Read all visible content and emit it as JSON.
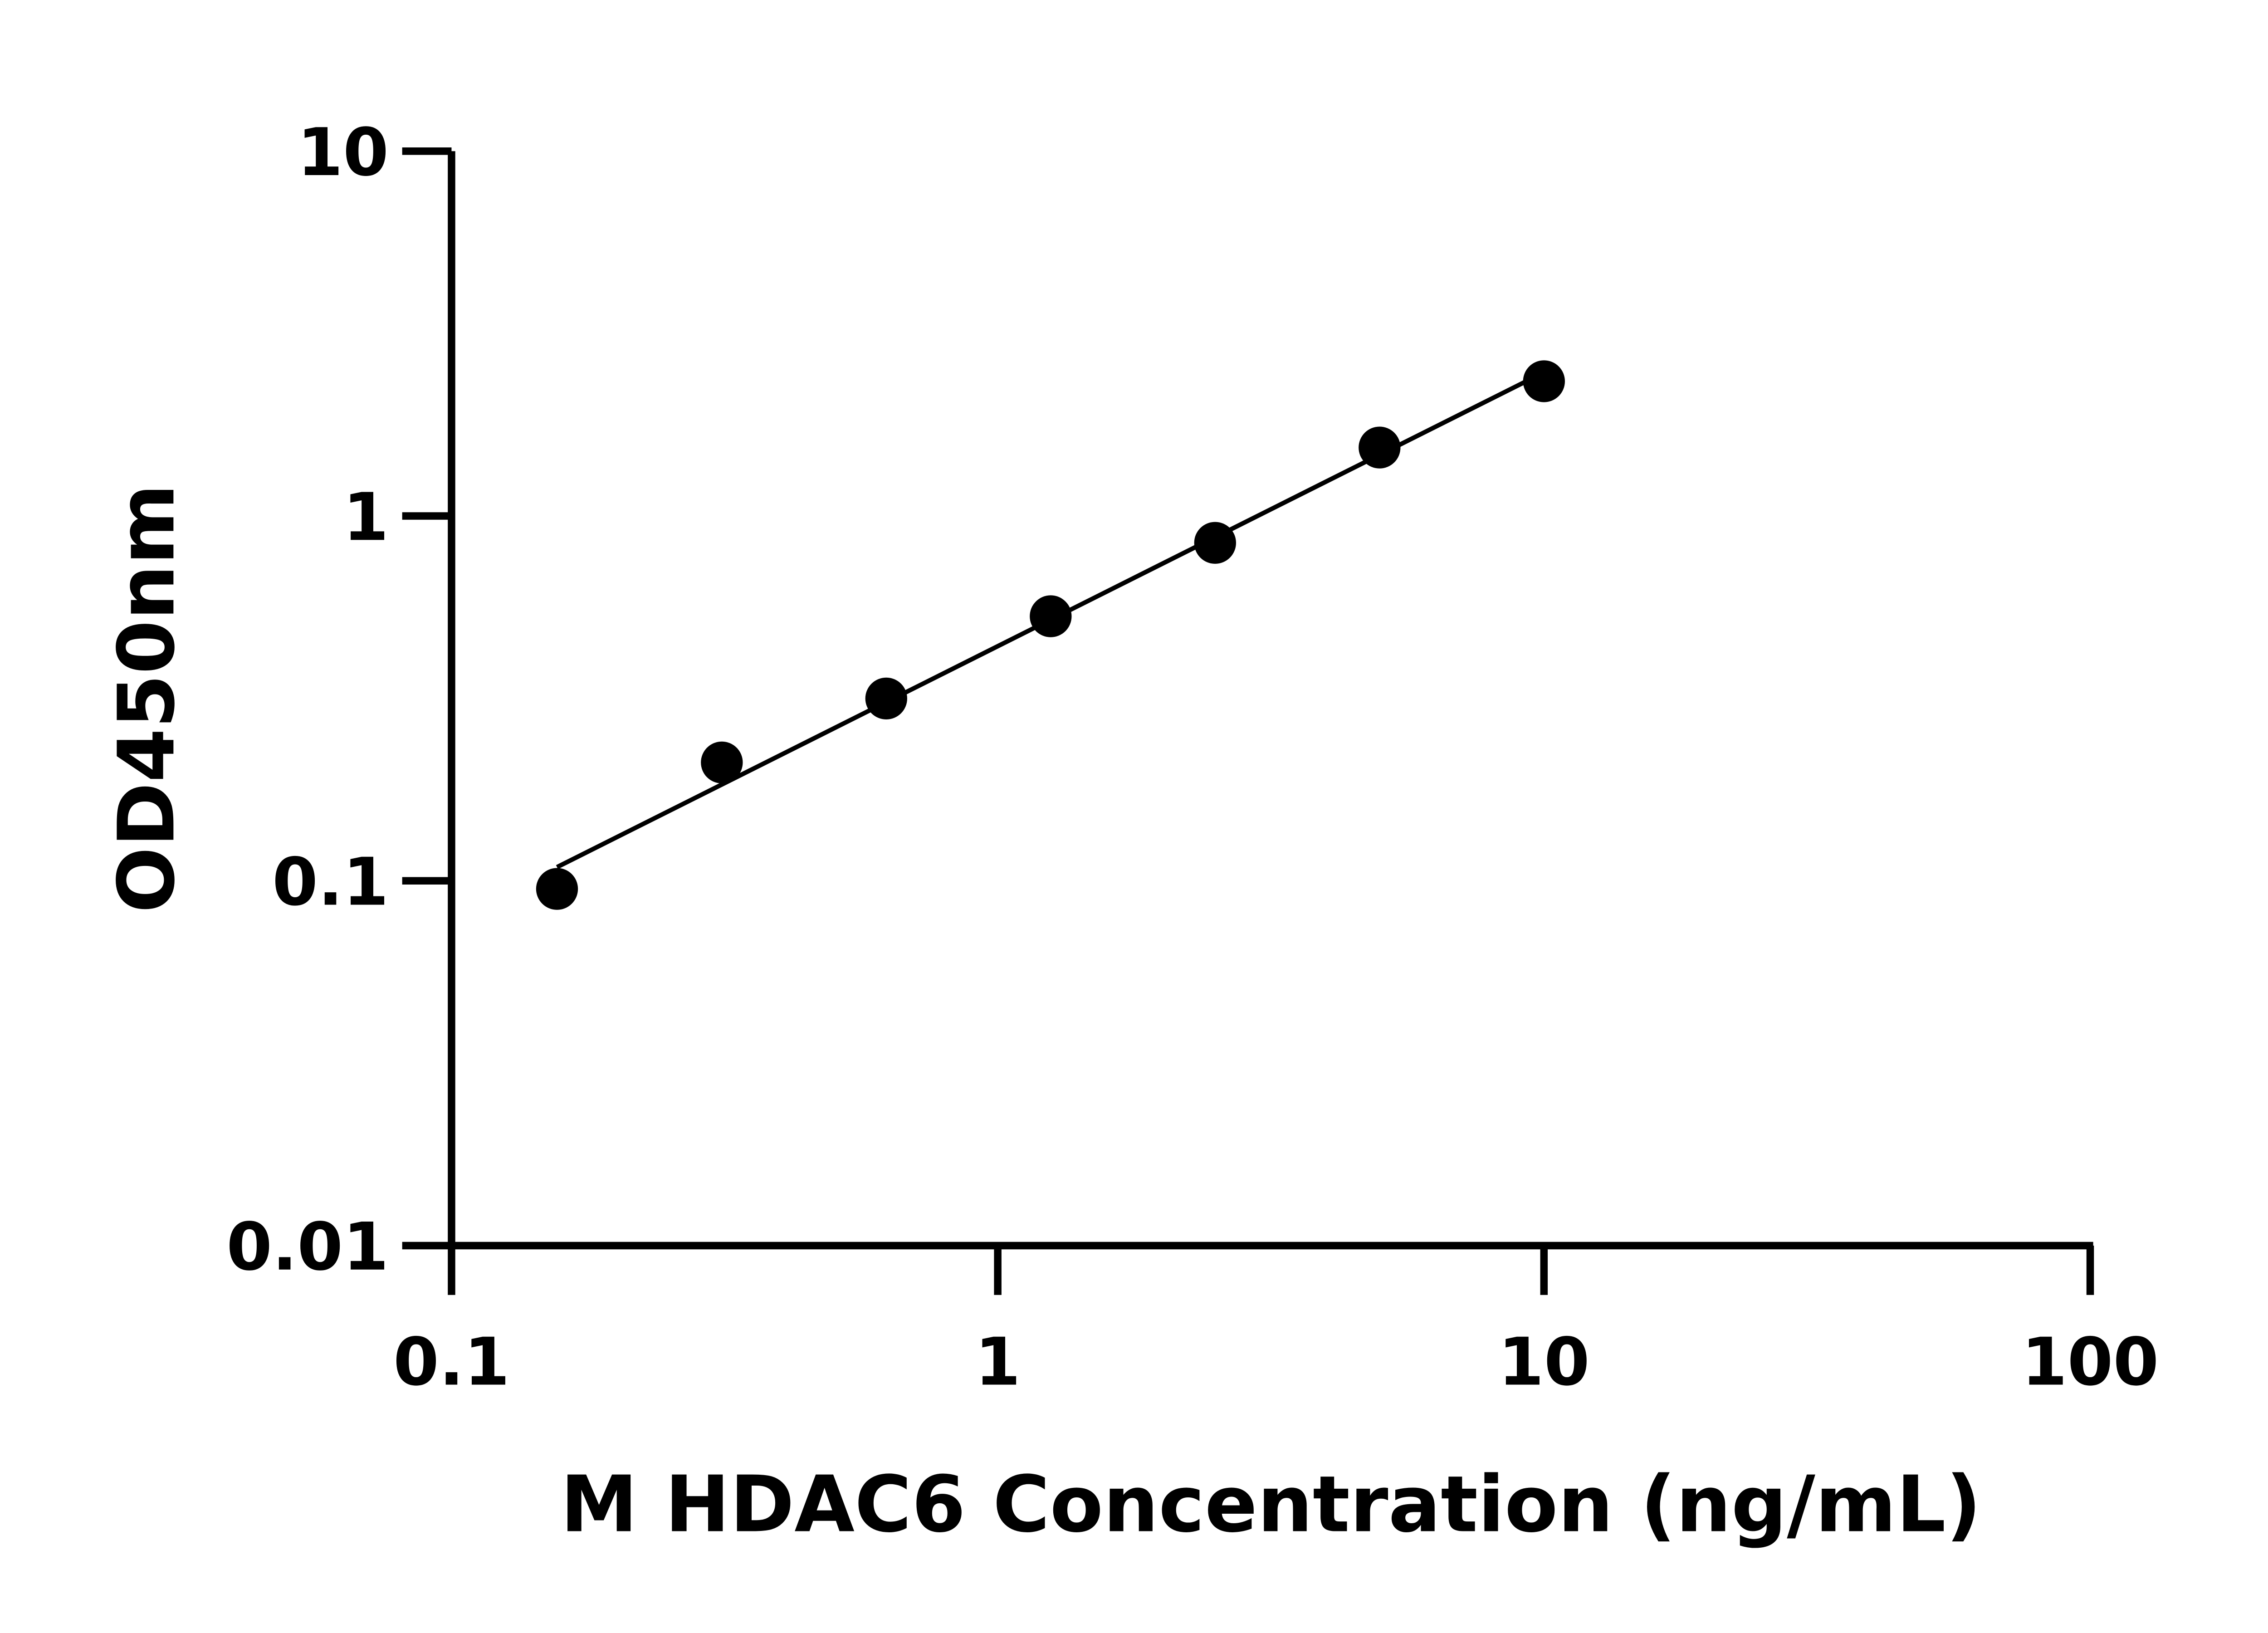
{
  "chart_data": {
    "type": "scatter",
    "title": "",
    "xlabel": "M HDAC6 Concentration (ng/mL)",
    "ylabel": "OD450nm",
    "xscale": "log",
    "yscale": "log",
    "xlim": [
      0.1,
      100
    ],
    "ylim": [
      0.01,
      10
    ],
    "xticks": [
      0.1,
      1,
      10,
      100
    ],
    "xtick_labels": [
      "0.1",
      "1",
      "10",
      "100"
    ],
    "yticks": [
      0.01,
      0.1,
      1,
      10
    ],
    "ytick_labels": [
      "0.01",
      "0.1",
      "1",
      "10"
    ],
    "grid": false,
    "legend": "none",
    "fit_line": true,
    "marker_color": "#000000",
    "line_color": "#000000",
    "x": [
      0.156,
      0.3125,
      0.625,
      1.25,
      2.5,
      5,
      10
    ],
    "y": [
      0.095,
      0.211,
      0.316,
      0.531,
      0.844,
      1.54,
      2.34
    ]
  }
}
